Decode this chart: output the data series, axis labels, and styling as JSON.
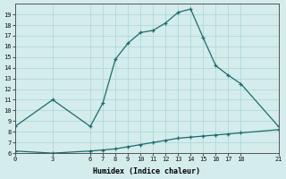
{
  "xlabel": "Humidex (Indice chaleur)",
  "background_color": "#d4ecec",
  "grid_color": "#b0d8d8",
  "line_color": "#1e6b6b",
  "xlim": [
    0,
    21
  ],
  "ylim": [
    6,
    20
  ],
  "xticks": [
    0,
    3,
    6,
    7,
    8,
    9,
    10,
    11,
    12,
    13,
    14,
    15,
    16,
    17,
    18,
    21
  ],
  "yticks": [
    6,
    7,
    8,
    9,
    10,
    11,
    12,
    13,
    14,
    15,
    16,
    17,
    18,
    19
  ],
  "upper_x": [
    0,
    3,
    6,
    7,
    8,
    9,
    10,
    11,
    12,
    13,
    14,
    15,
    16,
    17,
    18,
    21
  ],
  "upper_y": [
    8.5,
    11.0,
    8.5,
    10.7,
    14.8,
    16.3,
    17.3,
    17.5,
    18.2,
    19.2,
    19.5,
    16.8,
    14.2,
    13.3,
    12.5,
    8.5
  ],
  "lower_x": [
    0,
    3,
    6,
    7,
    8,
    9,
    10,
    11,
    12,
    13,
    14,
    15,
    16,
    17,
    18,
    21
  ],
  "lower_y": [
    6.2,
    6.0,
    6.2,
    6.3,
    6.4,
    6.6,
    6.8,
    7.0,
    7.2,
    7.4,
    7.5,
    7.6,
    7.7,
    7.8,
    7.9,
    8.2
  ]
}
